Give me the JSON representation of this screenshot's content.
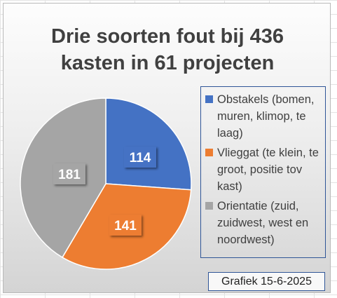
{
  "chart_data": {
    "type": "pie",
    "title": [
      "Drie soorten fout bij 436",
      "kasten in 61 projecten"
    ],
    "slices": [
      {
        "label": "Obstakels (bomen, muren, klimop, te laag)",
        "value": 114,
        "color": "#4472c4"
      },
      {
        "label": "Vlieggat (te klein, te groot, positie tov kast)",
        "value": 141,
        "color": "#ed7d31"
      },
      {
        "label": "Orientatie (zuid, zuidwest, west en noordwest)",
        "value": 181,
        "color": "#a5a5a5"
      }
    ],
    "start_angle": "12 o'clock",
    "direction": "clockwise",
    "data_labels": "value",
    "legend_position": "right"
  },
  "annotation": "Grafiek 15-6-2025",
  "colors": {
    "label_text": "#ffffff",
    "legend_border": "#2f5597",
    "title_text": "#404040"
  }
}
